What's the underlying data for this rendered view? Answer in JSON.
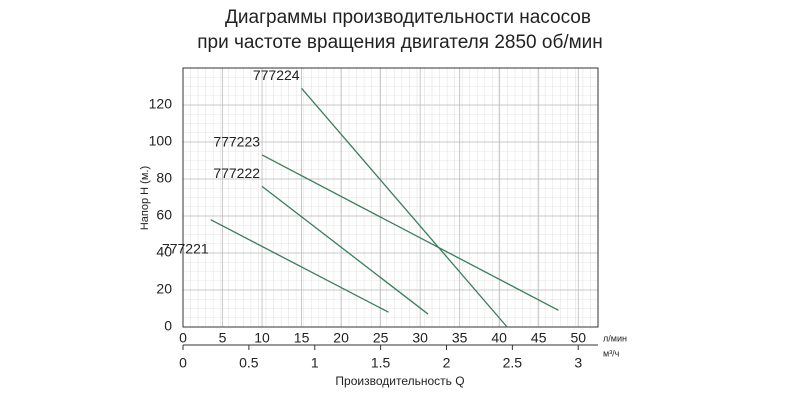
{
  "chart_data": {
    "type": "line",
    "title": "Диаграммы производительности насосов",
    "subtitle": "при частоте вращения двигателя 2850 об/мин",
    "y_label": "Напор H (м.)",
    "x_label": "Производительность  Q",
    "x_unit": "л/мин",
    "x2_unit": "м³/ч",
    "xlim": [
      0,
      52.5
    ],
    "xticks": [
      0,
      5,
      10,
      15,
      20,
      25,
      30,
      35,
      40,
      45,
      50
    ],
    "x2lim": [
      0,
      3.15
    ],
    "x2ticks": [
      0,
      0.5,
      1,
      1.5,
      2,
      2.5,
      3
    ],
    "ylim": [
      0,
      140
    ],
    "yticks": [
      0,
      20,
      40,
      60,
      80,
      100,
      120
    ],
    "grid": true,
    "series": [
      {
        "name": "777224",
        "color": "#3a7d5a",
        "x": [
          15,
          41
        ],
        "values": [
          129,
          0
        ]
      },
      {
        "name": "777223",
        "color": "#3a7d5a",
        "x": [
          10,
          47.5
        ],
        "values": [
          93,
          9
        ]
      },
      {
        "name": "777222",
        "color": "#3a7d5a",
        "x": [
          10,
          31
        ],
        "values": [
          76,
          7
        ]
      },
      {
        "name": "777221",
        "color": "#3a7d5a",
        "x": [
          3.5,
          26
        ],
        "values": [
          58,
          8
        ]
      }
    ]
  }
}
